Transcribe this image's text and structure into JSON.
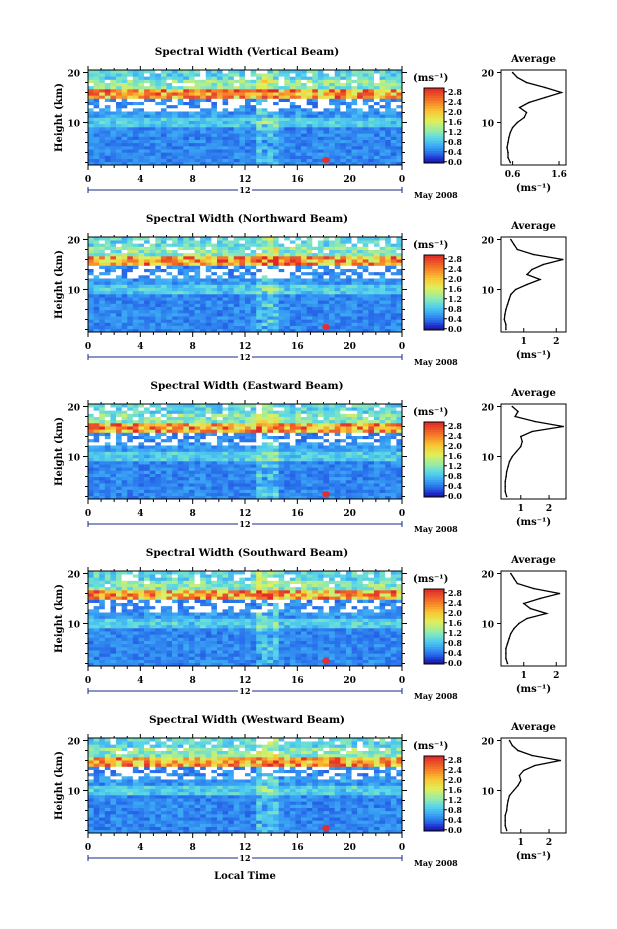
{
  "figure": {
    "xlabel": "Local Time",
    "month_label": "May 2008",
    "colorbar_unit": "(ms⁻¹)",
    "avg_unit": "(ms⁻¹)",
    "ylabel": "Height (km)",
    "avg_title": "Average"
  },
  "chart_data": [
    {
      "type": "heatmap",
      "title": "Spectral Width (Vertical Beam)",
      "ylabel": "Height (km)",
      "xlabel": "",
      "x_ticks": [
        "0",
        "4",
        "8",
        "12",
        "16",
        "20",
        "0"
      ],
      "day_label": "12",
      "y_ticks": [
        "20",
        "10"
      ],
      "xlim": [
        0,
        24
      ],
      "ylim": [
        1.5,
        20.5
      ],
      "colorbar_ticks": [
        "2.8",
        "2.4",
        "2.0",
        "1.6",
        "1.2",
        "0.8",
        "0.4",
        "0.0"
      ],
      "colorbar_range": [
        0,
        3.0
      ],
      "average_profile": {
        "title": "Average",
        "x_ticks": [
          "0.6",
          "1.6"
        ],
        "xlim": [
          0.35,
          1.75
        ],
        "y_ticks": [
          "20",
          "10"
        ],
        "height_km": [
          2,
          3,
          4,
          5,
          6,
          7,
          8,
          9,
          10,
          11,
          12,
          13,
          14,
          15,
          16,
          17,
          18,
          19,
          20
        ],
        "width_ms": [
          0.55,
          0.5,
          0.5,
          0.48,
          0.5,
          0.52,
          0.55,
          0.6,
          0.7,
          0.85,
          0.9,
          0.75,
          0.95,
          1.3,
          1.65,
          1.3,
          0.9,
          0.7,
          0.6
        ]
      }
    },
    {
      "type": "heatmap",
      "title": "Spectral Width (Northward Beam)",
      "ylabel": "Height (km)",
      "xlabel": "",
      "x_ticks": [
        "0",
        "4",
        "8",
        "12",
        "16",
        "20",
        "0"
      ],
      "day_label": "12",
      "y_ticks": [
        "20",
        "10"
      ],
      "xlim": [
        0,
        24
      ],
      "ylim": [
        1.5,
        20.5
      ],
      "colorbar_ticks": [
        "2.8",
        "2.4",
        "2.0",
        "1.6",
        "1.2",
        "0.8",
        "0.4",
        "0.0"
      ],
      "colorbar_range": [
        0,
        3.0
      ],
      "average_profile": {
        "title": "Average",
        "x_ticks": [
          "1",
          "2"
        ],
        "xlim": [
          0.3,
          2.3
        ],
        "y_ticks": [
          "20",
          "10"
        ],
        "height_km": [
          2,
          3,
          4,
          5,
          6,
          7,
          8,
          9,
          10,
          11,
          12,
          13,
          14,
          15,
          16,
          17,
          18,
          19,
          20
        ],
        "width_ms": [
          0.45,
          0.45,
          0.4,
          0.42,
          0.45,
          0.5,
          0.55,
          0.6,
          0.75,
          1.1,
          1.5,
          1.1,
          1.25,
          1.6,
          2.2,
          1.3,
          0.8,
          0.7,
          0.6
        ]
      }
    },
    {
      "type": "heatmap",
      "title": "Spectral Width (Eastward Beam)",
      "ylabel": "Height (km)",
      "xlabel": "",
      "x_ticks": [
        "0",
        "4",
        "8",
        "12",
        "16",
        "20",
        "0"
      ],
      "day_label": "12",
      "y_ticks": [
        "20",
        "10"
      ],
      "xlim": [
        0,
        24
      ],
      "ylim": [
        1.5,
        20.5
      ],
      "colorbar_ticks": [
        "2.8",
        "2.4",
        "2.0",
        "1.6",
        "1.2",
        "0.8",
        "0.4",
        "0.0"
      ],
      "colorbar_range": [
        0,
        3.0
      ],
      "average_profile": {
        "title": "Average",
        "x_ticks": [
          "1",
          "2"
        ],
        "xlim": [
          0.3,
          2.6
        ],
        "y_ticks": [
          "20",
          "10"
        ],
        "height_km": [
          2,
          3,
          4,
          5,
          6,
          7,
          8,
          9,
          10,
          11,
          12,
          13,
          14,
          15,
          16,
          17,
          18,
          19,
          20
        ],
        "width_ms": [
          0.5,
          0.45,
          0.45,
          0.45,
          0.48,
          0.5,
          0.55,
          0.6,
          0.7,
          0.85,
          1.0,
          1.05,
          1.0,
          1.4,
          2.5,
          1.5,
          0.8,
          0.9,
          0.7
        ]
      }
    },
    {
      "type": "heatmap",
      "title": "Spectral Width (Southward Beam)",
      "ylabel": "Height (km)",
      "xlabel": "",
      "x_ticks": [
        "0",
        "4",
        "8",
        "12",
        "16",
        "20",
        "0"
      ],
      "day_label": "12",
      "y_ticks": [
        "20",
        "10"
      ],
      "xlim": [
        0,
        24
      ],
      "ylim": [
        1.5,
        20.5
      ],
      "colorbar_ticks": [
        "2.8",
        "2.4",
        "2.0",
        "1.6",
        "1.2",
        "0.8",
        "0.4",
        "0.0"
      ],
      "colorbar_range": [
        0,
        3.0
      ],
      "average_profile": {
        "title": "Average",
        "x_ticks": [
          "1",
          "2"
        ],
        "xlim": [
          0.3,
          2.3
        ],
        "y_ticks": [
          "20",
          "10"
        ],
        "height_km": [
          2,
          3,
          4,
          5,
          6,
          7,
          8,
          9,
          10,
          11,
          12,
          13,
          14,
          15,
          16,
          17,
          18,
          19,
          20
        ],
        "width_ms": [
          0.5,
          0.45,
          0.45,
          0.45,
          0.5,
          0.55,
          0.6,
          0.7,
          0.85,
          1.1,
          1.7,
          1.2,
          1.0,
          1.5,
          2.1,
          1.3,
          0.8,
          0.7,
          0.6
        ]
      }
    },
    {
      "type": "heatmap",
      "title": "Spectral Width (Westward Beam)",
      "ylabel": "Height (km)",
      "xlabel": "Local Time",
      "x_ticks": [
        "0",
        "4",
        "8",
        "12",
        "16",
        "20",
        "0"
      ],
      "day_label": "12",
      "y_ticks": [
        "20",
        "10"
      ],
      "xlim": [
        0,
        24
      ],
      "ylim": [
        1.5,
        20.5
      ],
      "colorbar_ticks": [
        "2.8",
        "2.4",
        "2.0",
        "1.6",
        "1.2",
        "0.8",
        "0.4",
        "0.0"
      ],
      "colorbar_range": [
        0,
        3.0
      ],
      "average_profile": {
        "title": "Average",
        "x_ticks": [
          "1",
          "2"
        ],
        "xlim": [
          0.3,
          2.6
        ],
        "y_ticks": [
          "20",
          "10"
        ],
        "height_km": [
          2,
          3,
          4,
          5,
          6,
          7,
          8,
          9,
          10,
          11,
          12,
          13,
          14,
          15,
          16,
          17,
          18,
          19,
          20
        ],
        "width_ms": [
          0.5,
          0.45,
          0.45,
          0.45,
          0.5,
          0.52,
          0.55,
          0.6,
          0.75,
          0.9,
          1.0,
          0.95,
          1.1,
          1.5,
          2.4,
          1.4,
          0.9,
          0.7,
          0.6
        ]
      }
    }
  ]
}
